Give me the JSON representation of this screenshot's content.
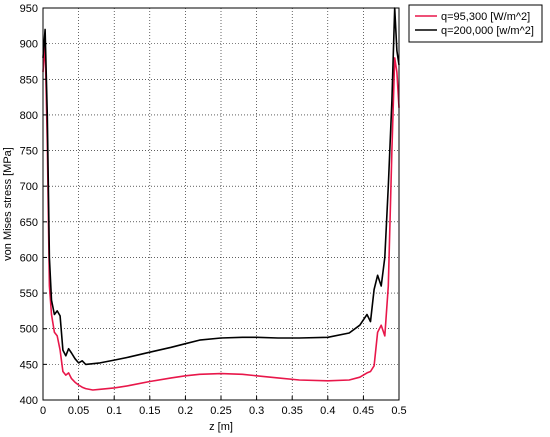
{
  "chart_data": {
    "type": "line",
    "xlabel": "z [m]",
    "ylabel": "von Mises stress [MPa]",
    "xlim": [
      0,
      0.5
    ],
    "ylim": [
      400,
      950
    ],
    "xticks": [
      "0",
      "0.05",
      "0.1",
      "0.15",
      "0.2",
      "0.25",
      "0.3",
      "0.35",
      "0.4",
      "0.45",
      "0.5"
    ],
    "yticks": [
      "400",
      "450",
      "500",
      "550",
      "600",
      "650",
      "700",
      "750",
      "800",
      "850",
      "900",
      "950"
    ],
    "grid": true,
    "grid_style": "dotted",
    "legend_position": "outside-top-right",
    "series": [
      {
        "name": "q=95,300 [W/m^2]",
        "color": "#e8174a",
        "x": [
          0,
          0.003,
          0.006,
          0.009,
          0.012,
          0.016,
          0.02,
          0.024,
          0.028,
          0.032,
          0.036,
          0.04,
          0.045,
          0.05,
          0.055,
          0.06,
          0.07,
          0.08,
          0.1,
          0.12,
          0.15,
          0.18,
          0.2,
          0.22,
          0.25,
          0.28,
          0.3,
          0.33,
          0.36,
          0.4,
          0.43,
          0.445,
          0.455,
          0.46,
          0.465,
          0.47,
          0.475,
          0.48,
          0.485,
          0.49,
          0.494,
          0.497,
          0.5
        ],
        "y": [
          860,
          900,
          760,
          560,
          520,
          495,
          490,
          470,
          440,
          435,
          438,
          430,
          425,
          421,
          418,
          416,
          414,
          415,
          417,
          420,
          426,
          431,
          434,
          436,
          437,
          436,
          434,
          431,
          428,
          427,
          428,
          432,
          438,
          440,
          448,
          495,
          505,
          490,
          560,
          750,
          880,
          860,
          810
        ]
      },
      {
        "name": "q=200,000 [w/m^2]",
        "color": "#000000",
        "x": [
          0,
          0.003,
          0.006,
          0.009,
          0.012,
          0.016,
          0.02,
          0.024,
          0.028,
          0.032,
          0.036,
          0.04,
          0.045,
          0.05,
          0.055,
          0.06,
          0.07,
          0.08,
          0.1,
          0.12,
          0.15,
          0.18,
          0.2,
          0.22,
          0.25,
          0.28,
          0.3,
          0.33,
          0.36,
          0.4,
          0.43,
          0.445,
          0.455,
          0.46,
          0.465,
          0.47,
          0.475,
          0.48,
          0.485,
          0.49,
          0.494,
          0.497,
          0.5
        ],
        "y": [
          880,
          920,
          800,
          600,
          540,
          520,
          525,
          518,
          470,
          462,
          472,
          466,
          458,
          452,
          455,
          450,
          451,
          452,
          456,
          460,
          467,
          474,
          479,
          484,
          487,
          488,
          488,
          487,
          487,
          488,
          494,
          505,
          520,
          510,
          555,
          575,
          560,
          600,
          700,
          820,
          960,
          890,
          870
        ]
      }
    ]
  },
  "colors": {
    "axis": "#000000",
    "grid": "#000000",
    "background": "#ffffff"
  }
}
